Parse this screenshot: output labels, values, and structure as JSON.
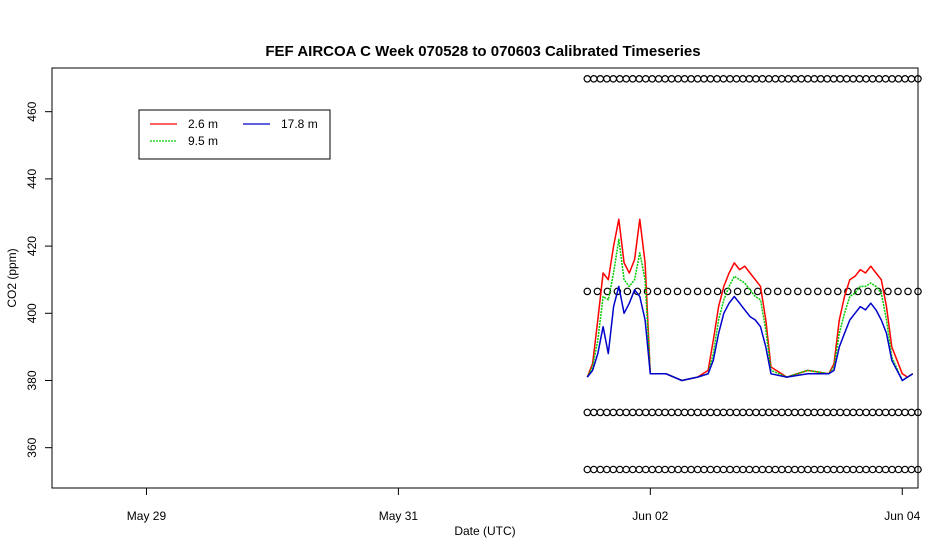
{
  "chart_data": {
    "type": "line",
    "title": "FEF AIRCOA C  Week 070528 to 070603  Calibrated Timeseries",
    "xlabel": "Date (UTC)",
    "ylabel": "CO2 (ppm)",
    "xlim": [
      "2007-05-28T06:00",
      "2007-06-04T03:00"
    ],
    "ylim": [
      348,
      473
    ],
    "grid": false,
    "legend_position": "top-left",
    "x_ticks": [
      {
        "value": "2007-05-29",
        "label": "May 29"
      },
      {
        "value": "2007-05-31",
        "label": "May 31"
      },
      {
        "value": "2007-06-02",
        "label": "Jun 02"
      },
      {
        "value": "2007-06-04",
        "label": "Jun 04"
      }
    ],
    "y_ticks": [
      360,
      380,
      400,
      420,
      440,
      460
    ],
    "series": [
      {
        "name": "2.6 m",
        "color": "#ff0000",
        "points": [
          [
            "2007-06-01T12:00",
            381
          ],
          [
            "2007-06-01T13:00",
            385
          ],
          [
            "2007-06-01T14:00",
            398
          ],
          [
            "2007-06-01T15:00",
            412
          ],
          [
            "2007-06-01T16:00",
            410
          ],
          [
            "2007-06-01T17:00",
            420
          ],
          [
            "2007-06-01T18:00",
            428
          ],
          [
            "2007-06-01T19:00",
            415
          ],
          [
            "2007-06-01T20:00",
            412
          ],
          [
            "2007-06-01T21:00",
            416
          ],
          [
            "2007-06-01T22:00",
            428
          ],
          [
            "2007-06-01T23:00",
            415
          ],
          [
            "2007-06-02T00:00",
            382
          ],
          [
            "2007-06-02T03:00",
            382
          ],
          [
            "2007-06-02T06:00",
            380
          ],
          [
            "2007-06-02T09:00",
            381
          ],
          [
            "2007-06-02T11:00",
            383
          ],
          [
            "2007-06-02T12:00",
            392
          ],
          [
            "2007-06-02T13:00",
            402
          ],
          [
            "2007-06-02T14:00",
            408
          ],
          [
            "2007-06-02T15:00",
            412
          ],
          [
            "2007-06-02T16:00",
            415
          ],
          [
            "2007-06-02T17:00",
            413
          ],
          [
            "2007-06-02T18:00",
            414
          ],
          [
            "2007-06-02T19:00",
            412
          ],
          [
            "2007-06-02T20:00",
            410
          ],
          [
            "2007-06-02T21:00",
            408
          ],
          [
            "2007-06-02T22:00",
            398
          ],
          [
            "2007-06-02T23:00",
            384
          ],
          [
            "2007-06-03T02:00",
            381
          ],
          [
            "2007-06-03T06:00",
            383
          ],
          [
            "2007-06-03T10:00",
            382
          ],
          [
            "2007-06-03T11:00",
            385
          ],
          [
            "2007-06-03T12:00",
            398
          ],
          [
            "2007-06-03T13:00",
            405
          ],
          [
            "2007-06-03T14:00",
            410
          ],
          [
            "2007-06-03T15:00",
            411
          ],
          [
            "2007-06-03T16:00",
            413
          ],
          [
            "2007-06-03T17:00",
            412
          ],
          [
            "2007-06-03T18:00",
            414
          ],
          [
            "2007-06-03T19:00",
            412
          ],
          [
            "2007-06-03T20:00",
            410
          ],
          [
            "2007-06-03T21:00",
            402
          ],
          [
            "2007-06-03T22:00",
            390
          ],
          [
            "2007-06-04T00:00",
            382
          ],
          [
            "2007-06-04T01:00",
            381
          ],
          [
            "2007-06-04T02:00",
            382
          ]
        ]
      },
      {
        "name": "9.5 m",
        "color": "#00cc00",
        "dashed": true,
        "points": [
          [
            "2007-06-01T12:00",
            381
          ],
          [
            "2007-06-01T13:00",
            384
          ],
          [
            "2007-06-01T14:00",
            392
          ],
          [
            "2007-06-01T15:00",
            405
          ],
          [
            "2007-06-01T16:00",
            404
          ],
          [
            "2007-06-01T17:00",
            412
          ],
          [
            "2007-06-01T18:00",
            422
          ],
          [
            "2007-06-01T19:00",
            410
          ],
          [
            "2007-06-01T20:00",
            408
          ],
          [
            "2007-06-01T21:00",
            410
          ],
          [
            "2007-06-01T22:00",
            418
          ],
          [
            "2007-06-01T23:00",
            410
          ],
          [
            "2007-06-02T00:00",
            382
          ],
          [
            "2007-06-02T03:00",
            382
          ],
          [
            "2007-06-02T06:00",
            380
          ],
          [
            "2007-06-02T09:00",
            381
          ],
          [
            "2007-06-02T11:00",
            382
          ],
          [
            "2007-06-02T12:00",
            388
          ],
          [
            "2007-06-02T13:00",
            398
          ],
          [
            "2007-06-02T14:00",
            404
          ],
          [
            "2007-06-02T15:00",
            408
          ],
          [
            "2007-06-02T16:00",
            411
          ],
          [
            "2007-06-02T17:00",
            410
          ],
          [
            "2007-06-02T18:00",
            409
          ],
          [
            "2007-06-02T19:00",
            407
          ],
          [
            "2007-06-02T20:00",
            405
          ],
          [
            "2007-06-02T21:00",
            404
          ],
          [
            "2007-06-02T22:00",
            395
          ],
          [
            "2007-06-02T23:00",
            383
          ],
          [
            "2007-06-03T02:00",
            381
          ],
          [
            "2007-06-03T06:00",
            383
          ],
          [
            "2007-06-03T10:00",
            382
          ],
          [
            "2007-06-03T11:00",
            384
          ],
          [
            "2007-06-03T12:00",
            394
          ],
          [
            "2007-06-03T13:00",
            400
          ],
          [
            "2007-06-03T14:00",
            405
          ],
          [
            "2007-06-03T15:00",
            406
          ],
          [
            "2007-06-03T16:00",
            408
          ],
          [
            "2007-06-03T17:00",
            408
          ],
          [
            "2007-06-03T18:00",
            409
          ],
          [
            "2007-06-03T19:00",
            408
          ],
          [
            "2007-06-03T20:00",
            406
          ],
          [
            "2007-06-03T21:00",
            398
          ],
          [
            "2007-06-03T22:00",
            387
          ],
          [
            "2007-06-04T00:00",
            380
          ],
          [
            "2007-06-04T01:00",
            381
          ],
          [
            "2007-06-04T02:00",
            382
          ]
        ]
      },
      {
        "name": "17.8 m",
        "color": "#0000cc",
        "points": [
          [
            "2007-06-01T12:00",
            381
          ],
          [
            "2007-06-01T13:00",
            383
          ],
          [
            "2007-06-01T14:00",
            388
          ],
          [
            "2007-06-01T15:00",
            396
          ],
          [
            "2007-06-01T16:00",
            388
          ],
          [
            "2007-06-01T17:00",
            402
          ],
          [
            "2007-06-01T18:00",
            408
          ],
          [
            "2007-06-01T19:00",
            400
          ],
          [
            "2007-06-01T20:00",
            403
          ],
          [
            "2007-06-01T21:00",
            407
          ],
          [
            "2007-06-01T22:00",
            405
          ],
          [
            "2007-06-01T23:00",
            398
          ],
          [
            "2007-06-02T00:00",
            382
          ],
          [
            "2007-06-02T03:00",
            382
          ],
          [
            "2007-06-02T06:00",
            380
          ],
          [
            "2007-06-02T09:00",
            381
          ],
          [
            "2007-06-02T11:00",
            382
          ],
          [
            "2007-06-02T12:00",
            386
          ],
          [
            "2007-06-02T13:00",
            394
          ],
          [
            "2007-06-02T14:00",
            400
          ],
          [
            "2007-06-02T15:00",
            403
          ],
          [
            "2007-06-02T16:00",
            405
          ],
          [
            "2007-06-02T17:00",
            403
          ],
          [
            "2007-06-02T18:00",
            401
          ],
          [
            "2007-06-02T19:00",
            399
          ],
          [
            "2007-06-02T20:00",
            398
          ],
          [
            "2007-06-02T21:00",
            396
          ],
          [
            "2007-06-02T22:00",
            390
          ],
          [
            "2007-06-02T23:00",
            382
          ],
          [
            "2007-06-03T02:00",
            381
          ],
          [
            "2007-06-03T06:00",
            382
          ],
          [
            "2007-06-03T10:00",
            382
          ],
          [
            "2007-06-03T11:00",
            383
          ],
          [
            "2007-06-03T12:00",
            390
          ],
          [
            "2007-06-03T13:00",
            394
          ],
          [
            "2007-06-03T14:00",
            398
          ],
          [
            "2007-06-03T15:00",
            400
          ],
          [
            "2007-06-03T16:00",
            402
          ],
          [
            "2007-06-03T17:00",
            401
          ],
          [
            "2007-06-03T18:00",
            403
          ],
          [
            "2007-06-03T19:00",
            401
          ],
          [
            "2007-06-03T20:00",
            398
          ],
          [
            "2007-06-03T21:00",
            394
          ],
          [
            "2007-06-03T22:00",
            386
          ],
          [
            "2007-06-04T00:00",
            380
          ],
          [
            "2007-06-04T01:00",
            381
          ],
          [
            "2007-06-04T02:00",
            382
          ]
        ]
      }
    ],
    "markers": {
      "shape": "open-circle",
      "color": "#000000",
      "x_range": [
        "2007-06-01T12:00",
        "2007-06-04T03:00"
      ],
      "rows": [
        {
          "y": 469.8,
          "count": 52
        },
        {
          "y": 406.5,
          "count": 34
        },
        {
          "y": 370.5,
          "count": 52
        },
        {
          "y": 353.5,
          "count": 52
        }
      ]
    }
  }
}
